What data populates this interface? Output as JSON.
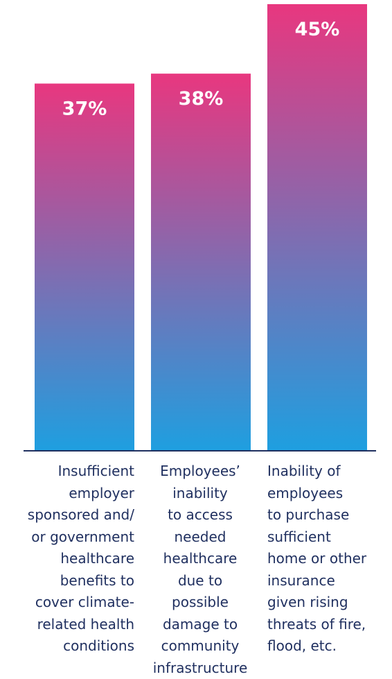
{
  "chart_data": {
    "type": "bar",
    "title": "",
    "xlabel": "",
    "ylabel": "",
    "ylim": [
      0,
      45
    ],
    "grid": false,
    "categories": [
      "Insufficient employer sponsored and/ or government healthcare benefits to cover climate-related health conditions",
      "Employees’ inability to access needed healthcare due to possible damage to community infrastructure",
      "Inability of employees to purchase sufficient home or other insurance given rising threats of fire, flood, etc."
    ],
    "category_lines": [
      [
        "Insufficient",
        "employer",
        "sponsored and/",
        "or government",
        "healthcare",
        "benefits to",
        "cover climate-",
        "related health",
        "conditions"
      ],
      [
        "Employees’",
        "inability",
        "to access",
        "needed",
        "healthcare",
        "due to",
        "possible",
        "damage to",
        "community",
        "infrastructure"
      ],
      [
        "Inability of",
        "employees",
        "to purchase",
        "sufficient",
        "home or other",
        "insurance",
        "given rising",
        "threats of fire,",
        "flood, etc."
      ]
    ],
    "values": [
      37,
      38,
      45
    ],
    "data_labels": [
      "37%",
      "38%",
      "45%"
    ],
    "colors": {
      "gradient_top": "#e8377f",
      "gradient_bottom": "#1e9fe0",
      "axis": "#1f2f5f",
      "label_text": "#1f2f5f"
    }
  }
}
